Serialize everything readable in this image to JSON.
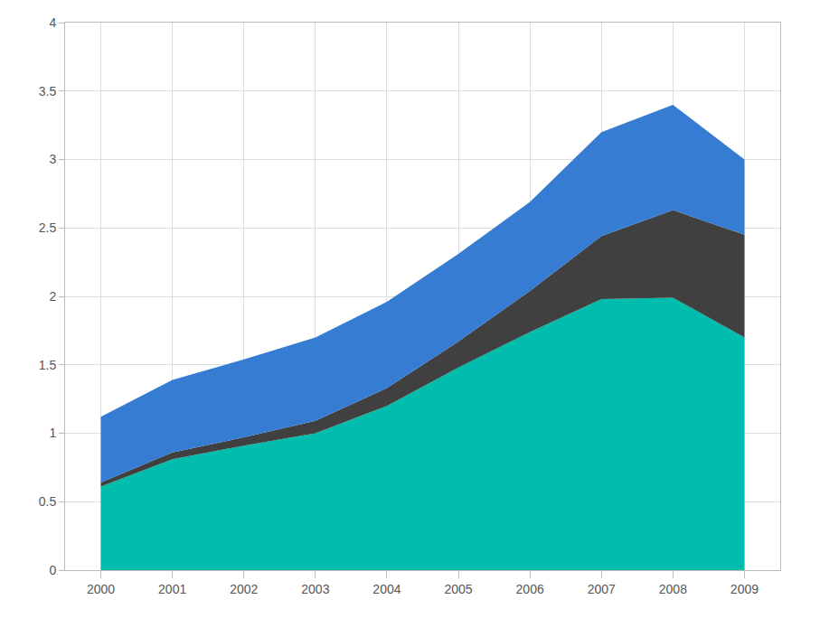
{
  "chart_data": {
    "type": "area",
    "stacked": true,
    "grid": true,
    "x": [
      2000,
      2001,
      2002,
      2003,
      2004,
      2005,
      2006,
      2007,
      2008,
      2009
    ],
    "xlim": [
      1999.5,
      2009.5
    ],
    "xticks": [
      2000,
      2001,
      2002,
      2003,
      2004,
      2005,
      2006,
      2007,
      2008,
      2009
    ],
    "ylim": [
      0,
      4
    ],
    "yticks": [
      0,
      0.5,
      1,
      1.5,
      2,
      2.5,
      3,
      3.5,
      4
    ],
    "series": [
      {
        "color": "#00bdae",
        "values": [
          0.61,
          0.81,
          0.91,
          1.0,
          1.2,
          1.48,
          1.74,
          1.98,
          1.99,
          1.7
        ]
      },
      {
        "color": "#404041",
        "values": [
          0.03,
          0.05,
          0.06,
          0.09,
          0.13,
          0.19,
          0.3,
          0.46,
          0.64,
          0.75
        ]
      },
      {
        "color": "#357cd2",
        "values": [
          0.48,
          0.53,
          0.57,
          0.61,
          0.63,
          0.64,
          0.65,
          0.76,
          0.77,
          0.55
        ]
      }
    ]
  }
}
